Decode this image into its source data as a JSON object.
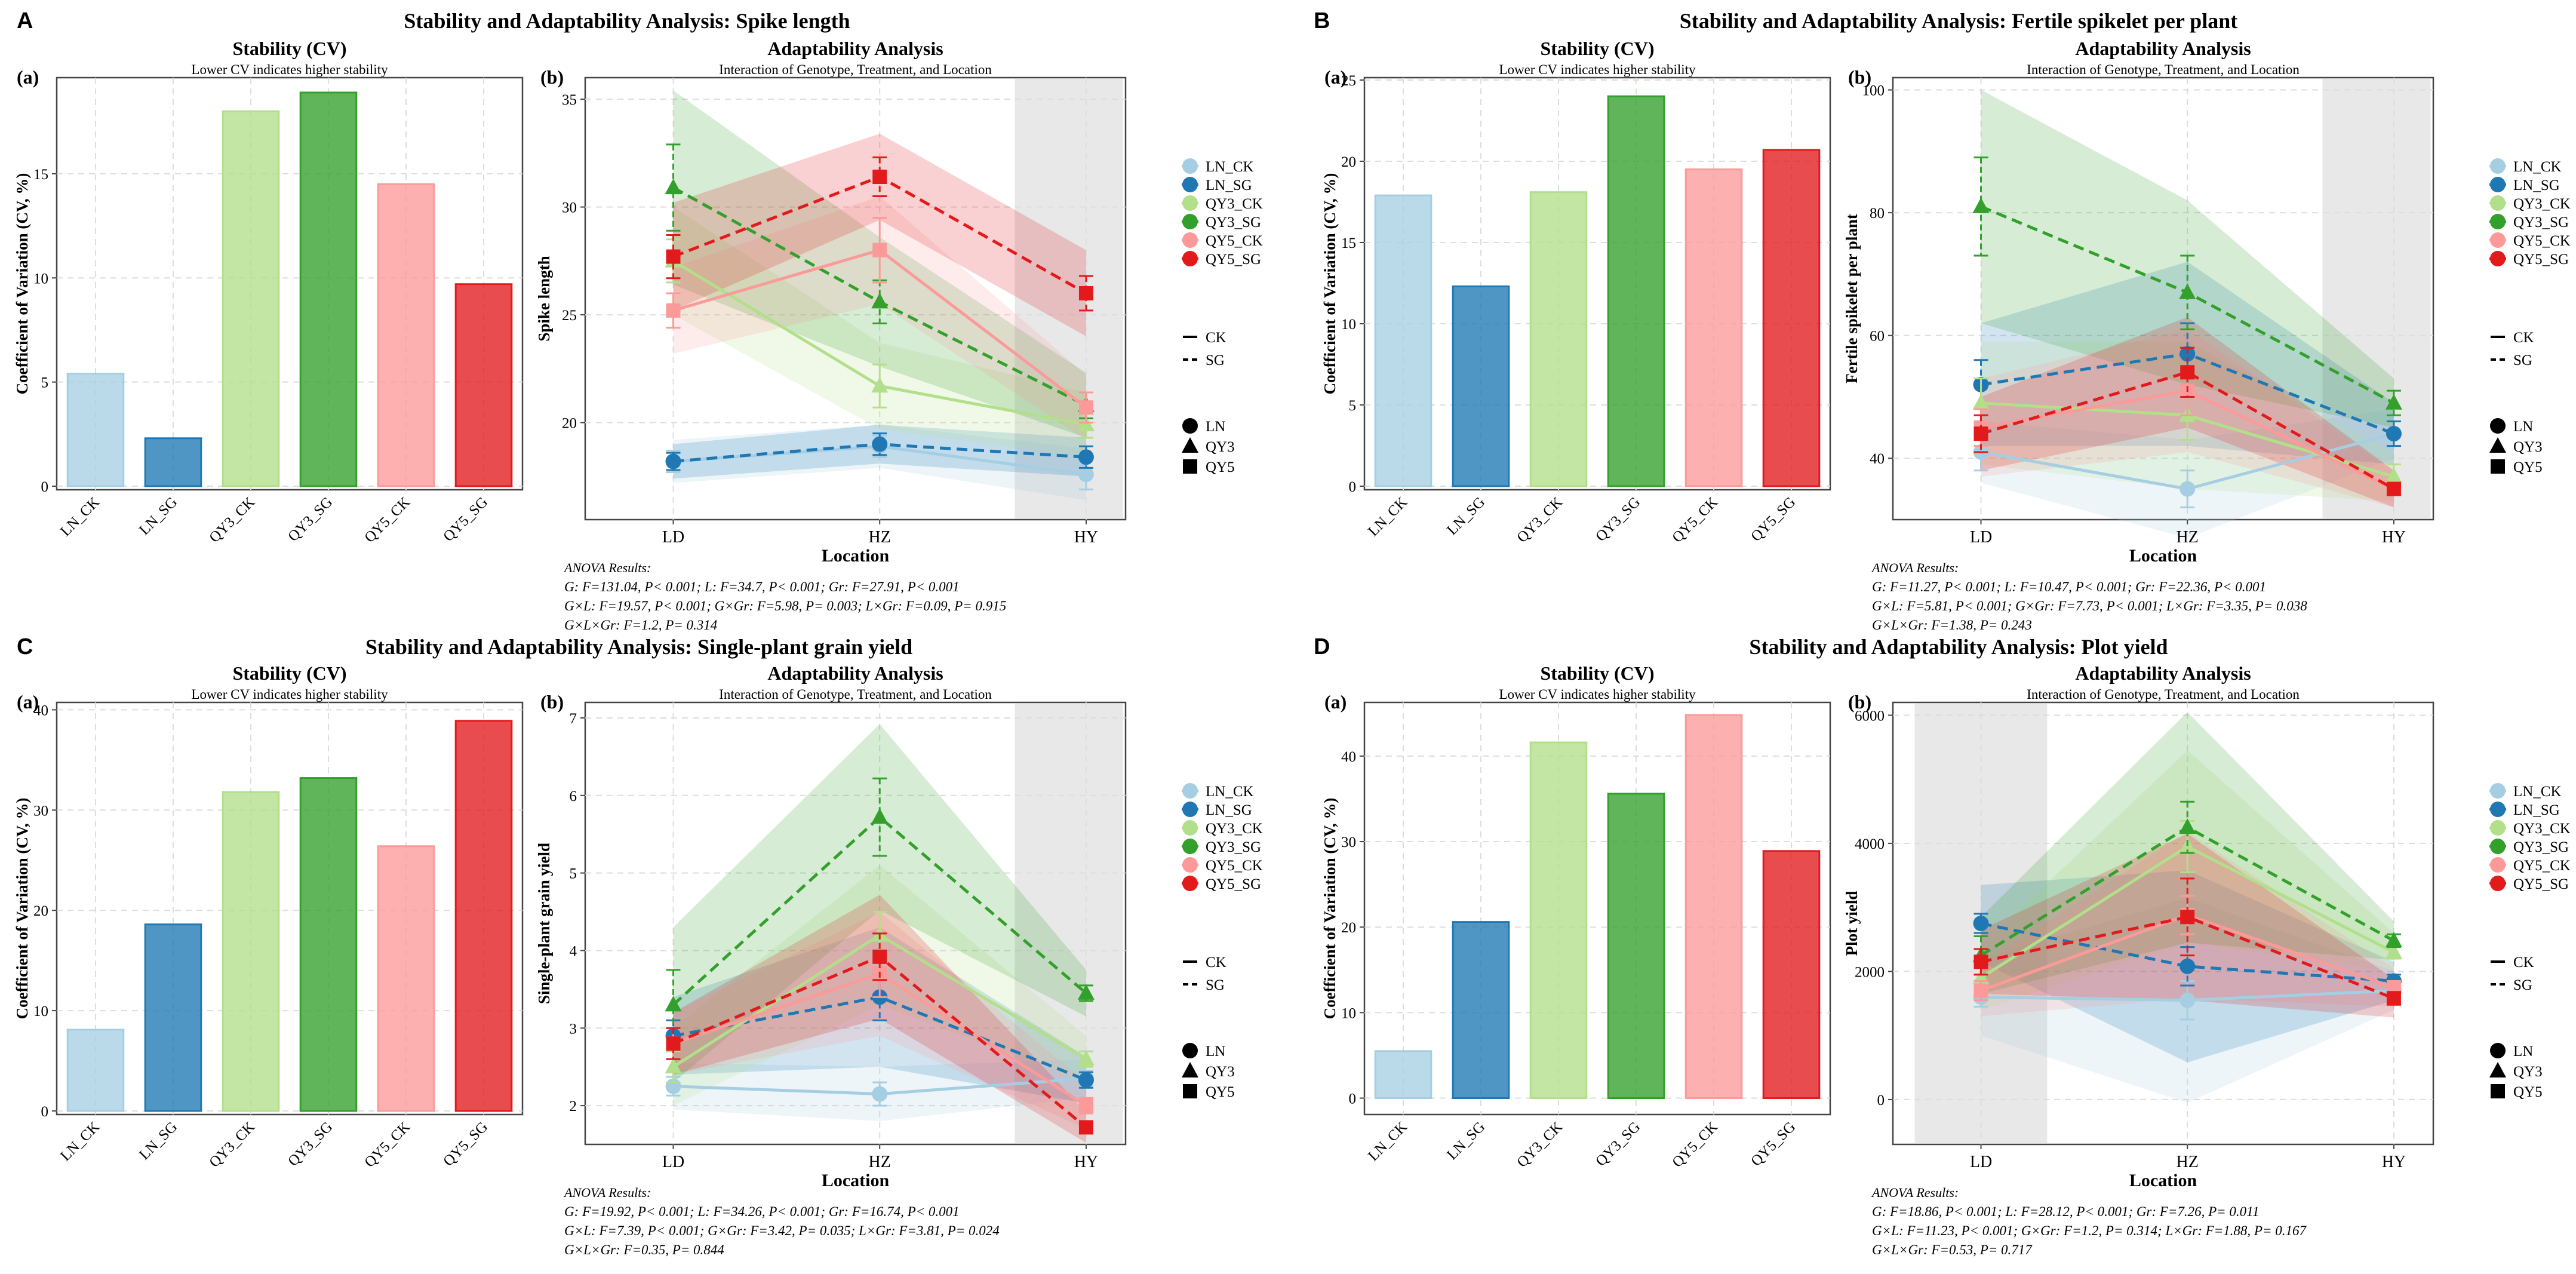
{
  "legend": {
    "series": [
      "LN_CK",
      "LN_SG",
      "QY3_CK",
      "QY3_SG",
      "QY5_CK",
      "QY5_SG"
    ],
    "treatments": [
      "CK",
      "SG"
    ],
    "locations_shapes": [
      "LN",
      "QY3",
      "QY5"
    ]
  },
  "colors": {
    "LN_CK": "#a6cee3",
    "LN_SG": "#1f78b4",
    "QY3_CK": "#b2df8a",
    "QY3_SG": "#33a02c",
    "QY5_CK": "#fb9a99",
    "QY5_SG": "#e31a1c",
    "panel_border": "#444444",
    "grid": "#dddddd",
    "highlight": "#e8e8e8"
  },
  "common": {
    "cv_title": "Stability (CV)",
    "cv_subtitle": "Lower CV indicates higher stability",
    "cv_ylabel": "Coefficient of Variation (CV, %)",
    "ad_title": "Adaptability Analysis",
    "ad_subtitle": "Interaction of Genotype, Treatment, and Location",
    "xlabel": "Location",
    "anova_heading": "ANOVA Results:",
    "sub_a": "(a)",
    "sub_b": "(b)"
  },
  "chart_data": [
    {
      "panel": "A",
      "title": "Stability and Adaptability Analysis: Spike length",
      "metric": "Spike length",
      "cv": {
        "type": "bar",
        "categories": [
          "LN_CK",
          "LN_SG",
          "QY3_CK",
          "QY3_SG",
          "QY5_CK",
          "QY5_SG"
        ],
        "values": [
          5.4,
          2.3,
          18.0,
          18.9,
          14.5,
          9.7
        ],
        "ylim": [
          0,
          19.5
        ],
        "ticks": [
          0,
          5,
          10,
          15
        ]
      },
      "adapt": {
        "type": "line",
        "x": [
          "LD",
          "HZ",
          "HY"
        ],
        "ylim": [
          15.5,
          36
        ],
        "ticks": [
          20,
          25,
          30,
          35
        ],
        "highlight": "HY",
        "series": [
          {
            "name": "LN_CK",
            "values": [
              18.2,
              18.9,
              17.6
            ],
            "err": [
              0.5,
              0.5,
              0.7
            ],
            "band": [
              1.0,
              1.0,
              1.2
            ]
          },
          {
            "name": "LN_SG",
            "values": [
              18.2,
              19.0,
              18.4
            ],
            "err": [
              0.4,
              0.5,
              0.5
            ],
            "band": [
              0.8,
              0.9,
              0.9
            ]
          },
          {
            "name": "QY3_CK",
            "values": [
              27.5,
              21.7,
              19.9
            ],
            "err": [
              1.0,
              1.0,
              0.6
            ],
            "band": [
              2.5,
              2.0,
              1.5
            ]
          },
          {
            "name": "QY3_SG",
            "values": [
              30.9,
              25.6,
              20.8
            ],
            "err": [
              2.0,
              1.0,
              0.6
            ],
            "band": [
              4.5,
              3.0,
              1.5
            ]
          },
          {
            "name": "QY5_CK",
            "values": [
              25.2,
              28.0,
              20.7
            ],
            "err": [
              0.8,
              1.5,
              0.7
            ],
            "band": [
              2.0,
              2.5,
              1.5
            ]
          },
          {
            "name": "QY5_SG",
            "values": [
              27.7,
              31.4,
              26.0
            ],
            "err": [
              1.0,
              0.9,
              0.8
            ],
            "band": [
              2.5,
              2.0,
              2.0
            ]
          }
        ]
      },
      "anova": [
        "G: F=131.04, P< 0.001;  L: F=34.7, P< 0.001;  Gr: F=27.91, P< 0.001",
        "G×L: F=19.57, P< 0.001;  G×Gr: F=5.98, P= 0.003;  L×Gr: F=0.09, P= 0.915",
        "G×L×Gr: F=1.2, P= 0.314"
      ]
    },
    {
      "panel": "B",
      "title": "Stability and Adaptability Analysis: Fertile spikelet per plant",
      "metric": "Fertile spikelet per plant",
      "cv": {
        "type": "bar",
        "categories": [
          "LN_CK",
          "LN_SG",
          "QY3_CK",
          "QY3_SG",
          "QY5_CK",
          "QY5_SG"
        ],
        "values": [
          17.9,
          12.3,
          18.1,
          24.0,
          19.5,
          20.7
        ],
        "ylim": [
          0,
          25
        ],
        "ticks": [
          0,
          5,
          10,
          15,
          20,
          25
        ]
      },
      "adapt": {
        "type": "line",
        "x": [
          "LD",
          "HZ",
          "HY"
        ],
        "ylim": [
          30,
          102
        ],
        "ticks": [
          40,
          60,
          80,
          100
        ],
        "highlight": "HY",
        "series": [
          {
            "name": "LN_CK",
            "values": [
              41,
              35,
              44
            ],
            "err": [
              3,
              3,
              2
            ],
            "band": [
              5,
              8,
              4
            ]
          },
          {
            "name": "LN_SG",
            "values": [
              52,
              57,
              44
            ],
            "err": [
              4,
              5,
              2
            ],
            "band": [
              10,
              15,
              5
            ]
          },
          {
            "name": "QY3_CK",
            "values": [
              49,
              47,
              37
            ],
            "err": [
              4,
              4,
              2
            ],
            "band": [
              10,
              12,
              4
            ]
          },
          {
            "name": "QY3_SG",
            "values": [
              81,
              67,
              49
            ],
            "err": [
              8,
              6,
              2
            ],
            "band": [
              19,
              15,
              4
            ]
          },
          {
            "name": "QY5_CK",
            "values": [
              45,
              51,
              35
            ],
            "err": [
              3,
              4,
              1
            ],
            "band": [
              8,
              10,
              3
            ]
          },
          {
            "name": "QY5_SG",
            "values": [
              44,
              54,
              35
            ],
            "err": [
              3,
              4,
              1
            ],
            "band": [
              6,
              9,
              3
            ]
          }
        ]
      },
      "anova": [
        "G: F=11.27, P< 0.001;  L: F=10.47, P< 0.001;  Gr: F=22.36, P< 0.001",
        "G×L: F=5.81, P< 0.001;  G×Gr: F=7.73, P< 0.001;  L×Gr: F=3.35, P= 0.038",
        "G×L×Gr: F=1.38, P= 0.243"
      ]
    },
    {
      "panel": "C",
      "title": "Stability and Adaptability Analysis: Single-plant grain yield",
      "metric": "Single-plant grain yield",
      "cv": {
        "type": "bar",
        "categories": [
          "LN_CK",
          "LN_SG",
          "QY3_CK",
          "QY3_SG",
          "QY5_CK",
          "QY5_SG"
        ],
        "values": [
          8.1,
          18.6,
          31.8,
          33.2,
          26.4,
          38.9
        ],
        "ylim": [
          0,
          40.5
        ],
        "ticks": [
          0,
          10,
          20,
          30,
          40
        ]
      },
      "adapt": {
        "type": "line",
        "x": [
          "LD",
          "HZ",
          "HY"
        ],
        "ylim": [
          1.5,
          7.2
        ],
        "ticks": [
          2,
          3,
          4,
          5,
          6,
          7
        ],
        "highlight": "HY",
        "series": [
          {
            "name": "LN_CK",
            "values": [
              2.25,
              2.15,
              2.35
            ],
            "err": [
              0.12,
              0.15,
              0.1
            ],
            "band": [
              0.3,
              0.35,
              0.25
            ]
          },
          {
            "name": "LN_SG",
            "values": [
              2.9,
              3.4,
              2.33
            ],
            "err": [
              0.2,
              0.3,
              0.1
            ],
            "band": [
              0.5,
              0.9,
              0.3
            ]
          },
          {
            "name": "QY3_CK",
            "values": [
              2.5,
              4.2,
              2.6
            ],
            "err": [
              0.2,
              0.3,
              0.1
            ],
            "band": [
              0.5,
              0.9,
              0.3
            ]
          },
          {
            "name": "QY3_SG",
            "values": [
              3.3,
              5.72,
              3.45
            ],
            "err": [
              0.45,
              0.5,
              0.1
            ],
            "band": [
              1.0,
              1.2,
              0.3
            ]
          },
          {
            "name": "QY5_CK",
            "values": [
              2.8,
              3.7,
              2.0
            ],
            "err": [
              0.2,
              0.3,
              0.1
            ],
            "band": [
              0.4,
              0.8,
              0.3
            ]
          },
          {
            "name": "QY5_SG",
            "values": [
              2.8,
              3.92,
              1.72
            ],
            "err": [
              0.2,
              0.3,
              0.05
            ],
            "band": [
              0.4,
              0.8,
              0.2
            ]
          }
        ]
      },
      "anova": [
        "G: F=19.92, P< 0.001;  L: F=34.26, P< 0.001;  Gr: F=16.74, P< 0.001",
        "G×L: F=7.39, P< 0.001;  G×Gr: F=3.42, P= 0.035;  L×Gr: F=3.81, P= 0.024",
        "G×L×Gr: F=0.35, P= 0.844"
      ]
    },
    {
      "panel": "D",
      "title": "Stability and Adaptability Analysis: Plot yield",
      "metric": "Plot yield",
      "cv": {
        "type": "bar",
        "categories": [
          "LN_CK",
          "LN_SG",
          "QY3_CK",
          "QY3_SG",
          "QY5_CK",
          "QY5_SG"
        ],
        "values": [
          5.5,
          20.6,
          41.6,
          35.6,
          44.8,
          28.9
        ],
        "ylim": [
          -1.5,
          46
        ],
        "ticks": [
          0,
          10,
          20,
          30,
          40
        ]
      },
      "adapt": {
        "type": "line",
        "x": [
          "LD",
          "HZ",
          "HY"
        ],
        "ylim": [
          -700,
          6200
        ],
        "ticks": [
          0,
          2000,
          4000,
          6000
        ],
        "highlight": "LD",
        "series": [
          {
            "name": "LN_CK",
            "values": [
              1600,
              1550,
              1700
            ],
            "err": [
              150,
              300,
              100
            ],
            "band": [
              600,
              1600,
              300
            ]
          },
          {
            "name": "LN_SG",
            "values": [
              2750,
              2080,
              1850
            ],
            "err": [
              150,
              300,
              100
            ],
            "band": [
              600,
              1500,
              300
            ]
          },
          {
            "name": "QY3_CK",
            "values": [
              1900,
              3950,
              2300
            ],
            "err": [
              200,
              400,
              100
            ],
            "band": [
              500,
              1500,
              300
            ]
          },
          {
            "name": "QY3_SG",
            "values": [
              2250,
              4250,
              2480
            ],
            "err": [
              300,
              400,
              100
            ],
            "band": [
              600,
              1800,
              300
            ]
          },
          {
            "name": "QY5_CK",
            "values": [
              1700,
              2880,
              1750
            ],
            "err": [
              150,
              300,
              100
            ],
            "band": [
              400,
              1300,
              300
            ]
          },
          {
            "name": "QY5_SG",
            "values": [
              2150,
              2850,
              1580
            ],
            "err": [
              200,
              600,
              100
            ],
            "band": [
              500,
              1300,
              300
            ]
          }
        ]
      },
      "anova": [
        "G: F=18.86, P< 0.001;  L: F=28.12, P< 0.001;  Gr: F=7.26, P= 0.011",
        "G×L: F=11.23, P< 0.001;  G×Gr: F=1.2, P= 0.314;  L×Gr: F=1.88, P= 0.167",
        "G×L×Gr: F=0.53, P= 0.717"
      ]
    }
  ]
}
